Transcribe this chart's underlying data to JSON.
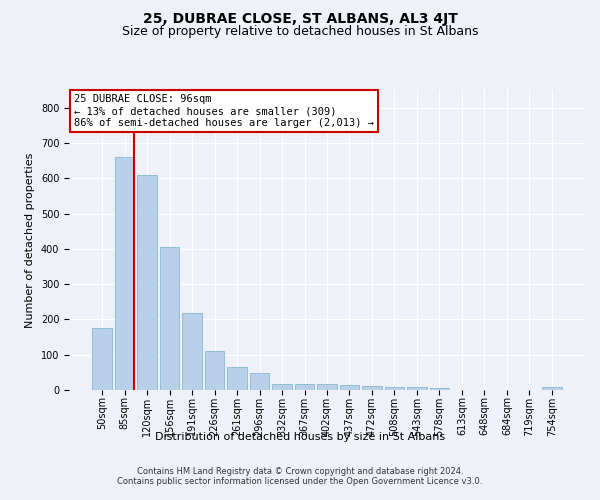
{
  "title": "25, DUBRAE CLOSE, ST ALBANS, AL3 4JT",
  "subtitle": "Size of property relative to detached houses in St Albans",
  "xlabel": "Distribution of detached houses by size in St Albans",
  "ylabel": "Number of detached properties",
  "categories": [
    "50sqm",
    "85sqm",
    "120sqm",
    "156sqm",
    "191sqm",
    "226sqm",
    "261sqm",
    "296sqm",
    "332sqm",
    "367sqm",
    "402sqm",
    "437sqm",
    "472sqm",
    "508sqm",
    "543sqm",
    "578sqm",
    "613sqm",
    "648sqm",
    "684sqm",
    "719sqm",
    "754sqm"
  ],
  "values": [
    175,
    660,
    610,
    405,
    218,
    110,
    65,
    48,
    18,
    17,
    17,
    15,
    10,
    8,
    8,
    7,
    0,
    0,
    0,
    0,
    8
  ],
  "bar_color": "#b8d0e8",
  "bar_edge_color": "#7aaece",
  "redline_x": 1.425,
  "redline_color": "#cc0000",
  "annotation_text": "25 DUBRAE CLOSE: 96sqm\n← 13% of detached houses are smaller (309)\n86% of semi-detached houses are larger (2,013) →",
  "annotation_box_color": "#ffffff",
  "annotation_box_edge_color": "#cc0000",
  "ylim": [
    0,
    850
  ],
  "yticks": [
    0,
    100,
    200,
    300,
    400,
    500,
    600,
    700,
    800
  ],
  "background_color": "#eef2f8",
  "footer_line1": "Contains HM Land Registry data © Crown copyright and database right 2024.",
  "footer_line2": "Contains public sector information licensed under the Open Government Licence v3.0.",
  "title_fontsize": 10,
  "subtitle_fontsize": 9,
  "axis_label_fontsize": 8,
  "tick_fontsize": 7,
  "annotation_fontsize": 7.5
}
